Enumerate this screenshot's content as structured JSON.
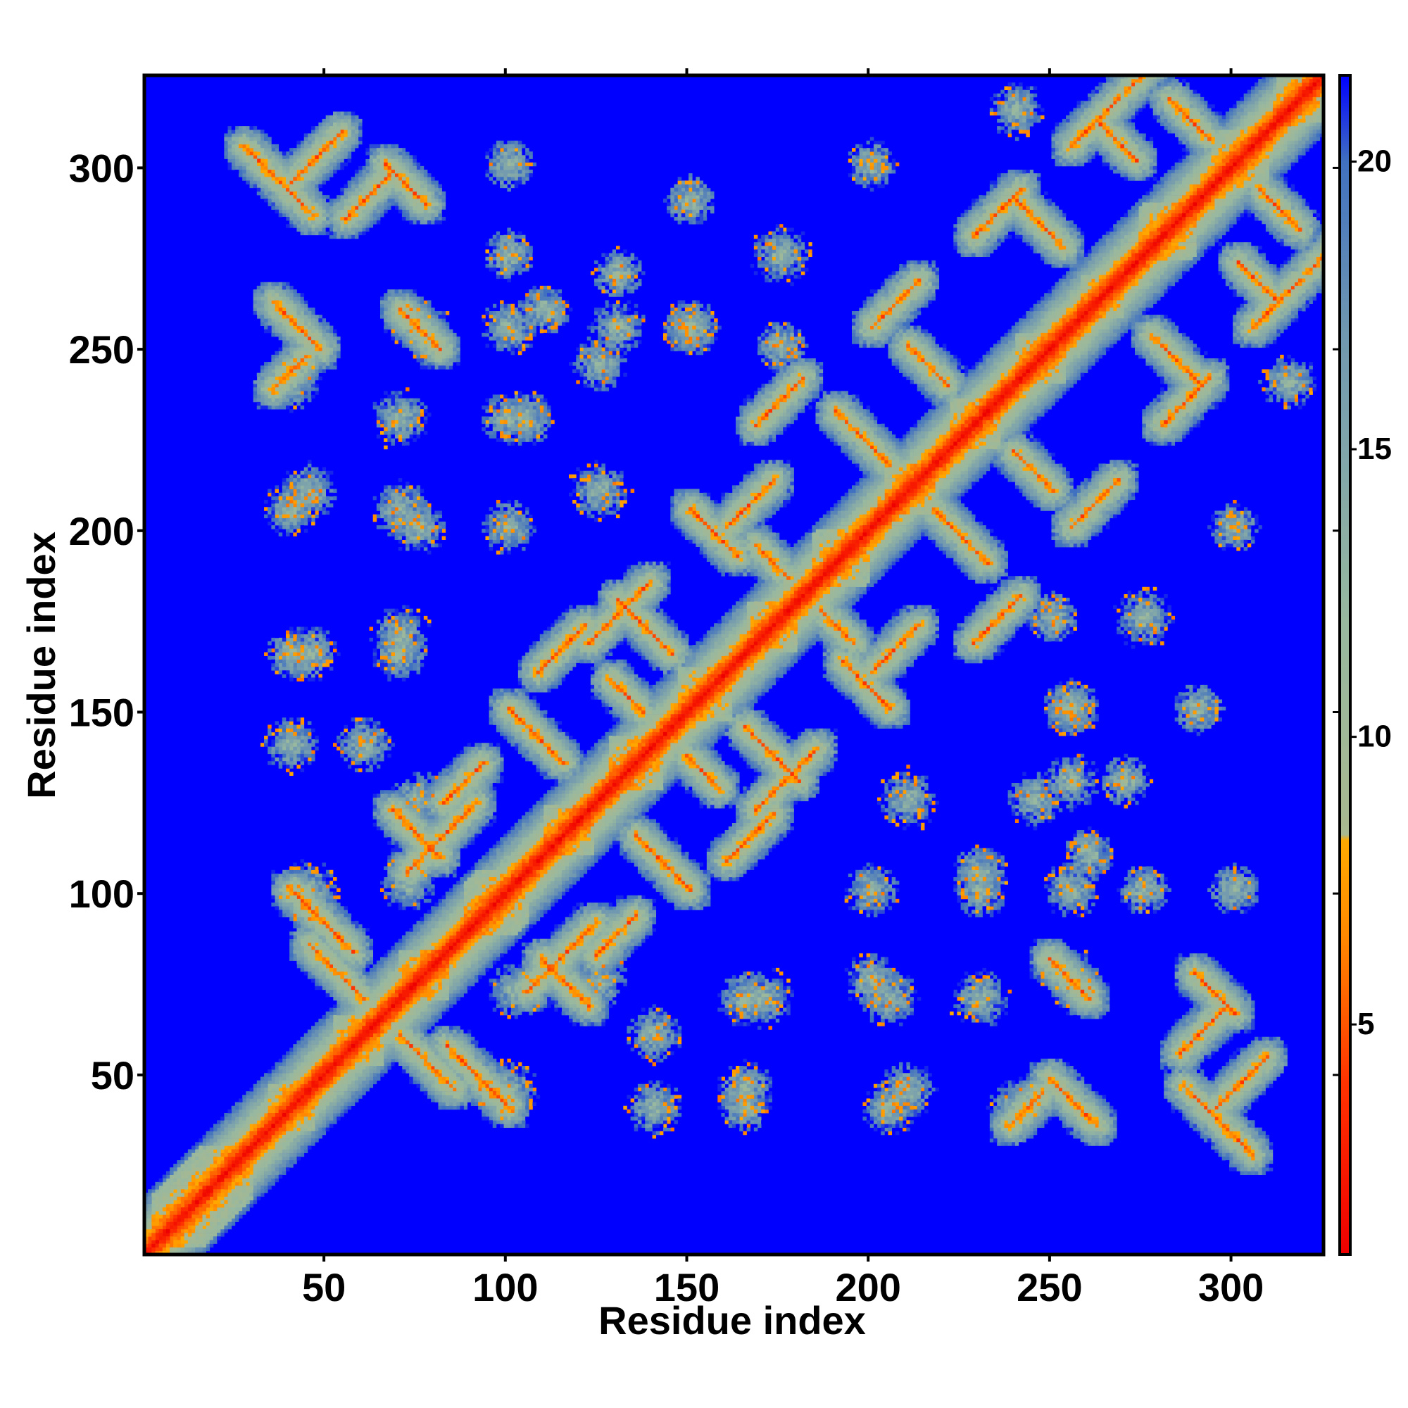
{
  "chart_data": {
    "type": "heatmap",
    "title": "",
    "xlabel": "Residue index",
    "ylabel": "Residue index",
    "n_residues": 325,
    "xlim": [
      0.5,
      325.5
    ],
    "ylim": [
      0.5,
      325.5
    ],
    "x_ticks": [
      50,
      100,
      150,
      200,
      250,
      300
    ],
    "y_ticks": [
      50,
      100,
      150,
      200,
      250,
      300
    ],
    "x_tick_labels": [
      "50",
      "100",
      "150",
      "200",
      "250",
      "300"
    ],
    "y_tick_labels": [
      "50",
      "100",
      "150",
      "200",
      "250",
      "300"
    ],
    "colorbar": {
      "range": [
        1,
        21.5
      ],
      "ticks": [
        5,
        10,
        15,
        20
      ],
      "tick_labels": [
        "5",
        "10",
        "15",
        "20"
      ],
      "stops": [
        {
          "value": 1,
          "color": "#ee0000"
        },
        {
          "value": 4,
          "color": "#ff3300"
        },
        {
          "value": 6.5,
          "color": "#ff8800"
        },
        {
          "value": 8.2,
          "color": "#ffaa00"
        },
        {
          "value": 8.3,
          "color": "#a8b890"
        },
        {
          "value": 12,
          "color": "#98b8a0"
        },
        {
          "value": 17,
          "color": "#7098b0"
        },
        {
          "value": 20,
          "color": "#4070c0"
        },
        {
          "value": 21.5,
          "color": "#0000ff"
        }
      ]
    },
    "background_color": "#0000ff",
    "structure": {
      "diagonal": "distance near zero along i=j (red), rising to ~12 within 10 residues",
      "secondary_elements": [
        {
          "start": 2,
          "end": 30
        },
        {
          "start": 34,
          "end": 47
        },
        {
          "start": 52,
          "end": 66
        },
        {
          "start": 70,
          "end": 84
        },
        {
          "start": 88,
          "end": 106
        },
        {
          "start": 110,
          "end": 124
        },
        {
          "start": 128,
          "end": 143
        },
        {
          "start": 147,
          "end": 162
        },
        {
          "start": 166,
          "end": 180
        },
        {
          "start": 184,
          "end": 200
        },
        {
          "start": 204,
          "end": 218
        },
        {
          "start": 222,
          "end": 236
        },
        {
          "start": 240,
          "end": 254
        },
        {
          "start": 258,
          "end": 270
        },
        {
          "start": 274,
          "end": 290
        },
        {
          "start": 294,
          "end": 310
        },
        {
          "start": 312,
          "end": 325
        }
      ],
      "contact_bands": [
        {
          "i": 27,
          "j": 305,
          "span": 20,
          "orientation": "anti"
        },
        {
          "i": 40,
          "j": 295,
          "span": 15,
          "orientation": "parallel"
        },
        {
          "i": 35,
          "j": 262,
          "span": 14,
          "orientation": "anti"
        },
        {
          "i": 35,
          "j": 238,
          "span": 10,
          "orientation": "parallel"
        },
        {
          "i": 66,
          "j": 300,
          "span": 12,
          "orientation": "anti"
        },
        {
          "i": 70,
          "j": 260,
          "span": 12,
          "orientation": "anti"
        },
        {
          "i": 55,
          "j": 285,
          "span": 14,
          "orientation": "parallel"
        },
        {
          "i": 72,
          "j": 105,
          "span": 20,
          "orientation": "parallel"
        },
        {
          "i": 40,
          "j": 100,
          "span": 18,
          "orientation": "anti"
        },
        {
          "i": 45,
          "j": 85,
          "span": 16,
          "orientation": "anti"
        },
        {
          "i": 68,
          "j": 122,
          "span": 14,
          "orientation": "anti"
        },
        {
          "i": 82,
          "j": 124,
          "span": 12,
          "orientation": "parallel"
        },
        {
          "i": 100,
          "j": 150,
          "span": 16,
          "orientation": "anti"
        },
        {
          "i": 108,
          "j": 160,
          "span": 14,
          "orientation": "parallel"
        },
        {
          "i": 122,
          "j": 168,
          "span": 18,
          "orientation": "parallel"
        },
        {
          "i": 130,
          "j": 180,
          "span": 16,
          "orientation": "anti"
        },
        {
          "i": 128,
          "j": 158,
          "span": 10,
          "orientation": "anti"
        },
        {
          "i": 150,
          "j": 205,
          "span": 14,
          "orientation": "anti"
        },
        {
          "i": 160,
          "j": 200,
          "span": 14,
          "orientation": "parallel"
        },
        {
          "i": 168,
          "j": 228,
          "span": 14,
          "orientation": "parallel"
        },
        {
          "i": 168,
          "j": 195,
          "span": 10,
          "orientation": "anti"
        },
        {
          "i": 190,
          "j": 232,
          "span": 16,
          "orientation": "anti"
        },
        {
          "i": 200,
          "j": 255,
          "span": 14,
          "orientation": "parallel"
        },
        {
          "i": 210,
          "j": 250,
          "span": 12,
          "orientation": "anti"
        },
        {
          "i": 228,
          "j": 280,
          "span": 14,
          "orientation": "parallel"
        },
        {
          "i": 240,
          "j": 290,
          "span": 14,
          "orientation": "anti"
        },
        {
          "i": 255,
          "j": 305,
          "span": 14,
          "orientation": "parallel"
        },
        {
          "i": 262,
          "j": 312,
          "span": 12,
          "orientation": "anti"
        },
        {
          "i": 270,
          "j": 320,
          "span": 10,
          "orientation": "parallel"
        },
        {
          "i": 282,
          "j": 318,
          "span": 12,
          "orientation": "anti"
        }
      ],
      "contact_patches": [
        {
          "i": 100,
          "j": 45,
          "r": 6
        },
        {
          "i": 102,
          "j": 72,
          "r": 5
        },
        {
          "i": 140,
          "j": 40,
          "r": 5
        },
        {
          "i": 170,
          "j": 70,
          "r": 6
        },
        {
          "i": 205,
          "j": 70,
          "r": 5
        },
        {
          "i": 205,
          "j": 40,
          "r": 5
        },
        {
          "i": 230,
          "j": 70,
          "r": 6
        },
        {
          "i": 255,
          "j": 75,
          "r": 6
        },
        {
          "i": 255,
          "j": 100,
          "r": 5
        },
        {
          "i": 230,
          "j": 100,
          "r": 5
        },
        {
          "i": 210,
          "j": 125,
          "r": 6
        },
        {
          "i": 245,
          "j": 125,
          "r": 5
        },
        {
          "i": 255,
          "j": 150,
          "r": 5
        },
        {
          "i": 300,
          "j": 200,
          "r": 4
        },
        {
          "i": 315,
          "j": 240,
          "r": 5
        },
        {
          "i": 175,
          "j": 275,
          "r": 6
        },
        {
          "i": 150,
          "j": 255,
          "r": 5
        },
        {
          "i": 130,
          "j": 255,
          "r": 5
        },
        {
          "i": 105,
          "j": 230,
          "r": 5
        },
        {
          "i": 100,
          "j": 200,
          "r": 5
        },
        {
          "i": 75,
          "j": 200,
          "r": 5
        },
        {
          "i": 45,
          "j": 210,
          "r": 5
        },
        {
          "i": 45,
          "j": 165,
          "r": 5
        },
        {
          "i": 70,
          "j": 165,
          "r": 5
        },
        {
          "i": 110,
          "j": 260,
          "r": 4
        },
        {
          "i": 60,
          "j": 140,
          "r": 5
        },
        {
          "i": 125,
          "j": 75,
          "r": 5
        },
        {
          "i": 165,
          "j": 40,
          "r": 4
        },
        {
          "i": 240,
          "j": 40,
          "r": 5
        },
        {
          "i": 270,
          "j": 130,
          "r": 4
        },
        {
          "i": 290,
          "j": 150,
          "r": 4
        },
        {
          "i": 250,
          "j": 175,
          "r": 4
        },
        {
          "i": 275,
          "j": 100,
          "r": 4
        },
        {
          "i": 300,
          "j": 100,
          "r": 4
        }
      ]
    }
  }
}
